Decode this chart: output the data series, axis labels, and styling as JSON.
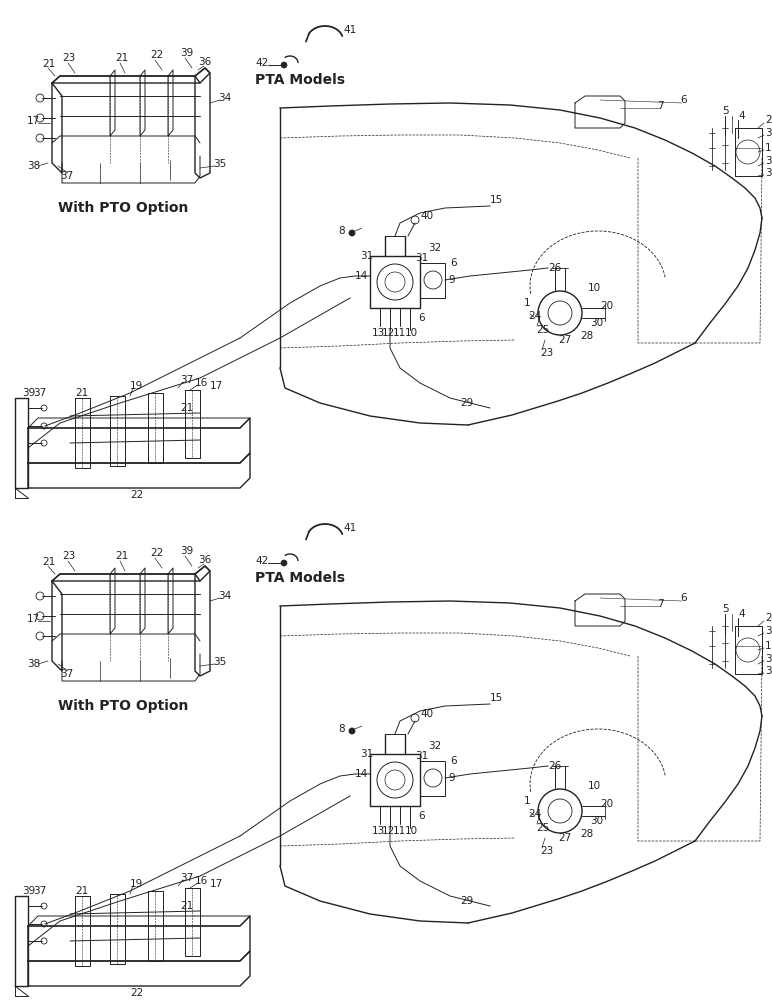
{
  "background_color": "#ffffff",
  "pta_models_label": "PTA Models",
  "with_pto_label": "With PTO Option",
  "line_color": "#222222",
  "text_color": "#222222",
  "fs": 7.5,
  "fsl": 10,
  "diagrams": [
    {
      "oy": 502
    },
    {
      "oy": 4
    }
  ]
}
